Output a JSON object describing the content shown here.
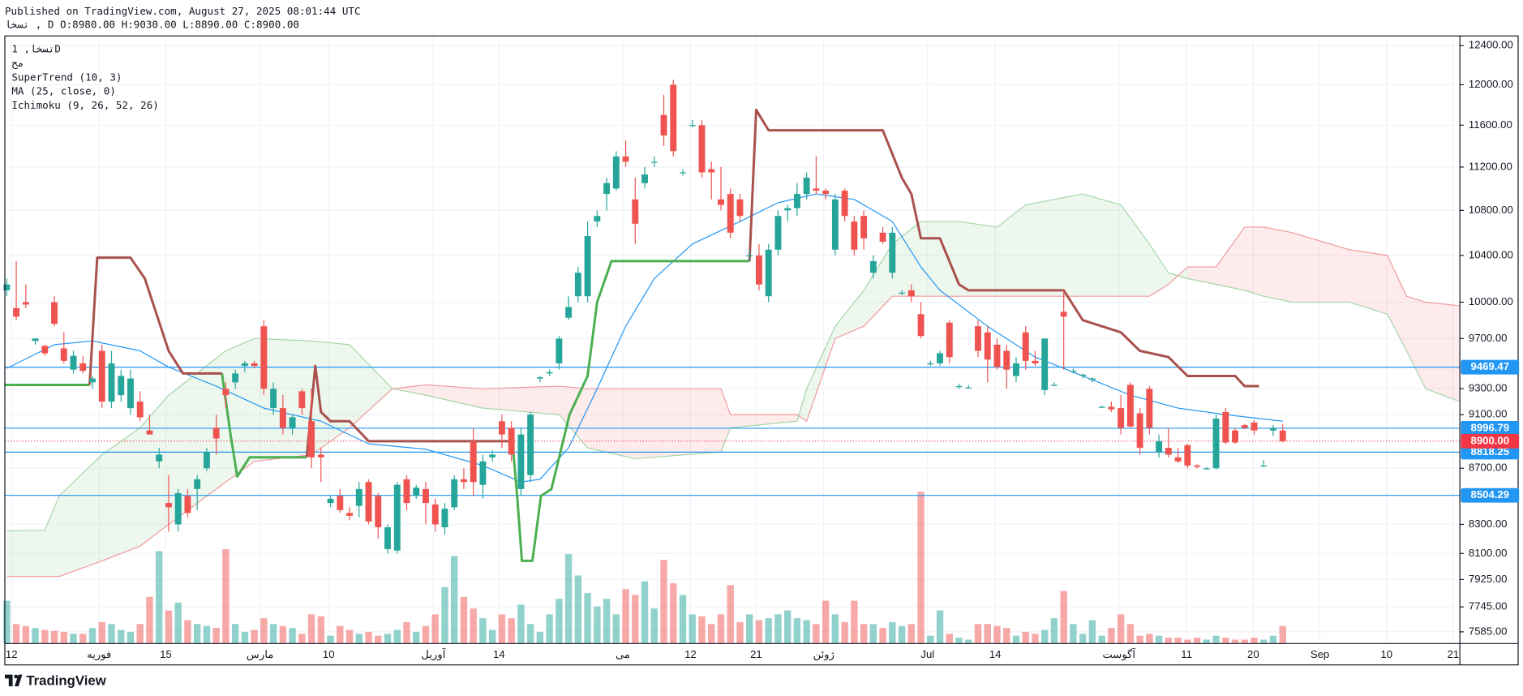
{
  "header": {
    "published": "Published on TradingView.com, August 27, 2025 08:01:44 UTC",
    "symbol_line": "تسخا , D O:8980.00 H:9030.00 L:8890.00 C:8900.00"
  },
  "branding": "TradingView",
  "chart_data": {
    "type": "candlestick",
    "legend": [
      "تسخا, 1D",
      "مح",
      "SuperTrend (10, 3)",
      "MA (25, close, 0)",
      "Ichimoku (9, 26, 52, 26)"
    ],
    "up_color": "#26a69a",
    "down_color": "#ef5350",
    "log_scale": true,
    "grid": true,
    "ylim": [
      7511,
      12501
    ],
    "yticks": [
      {
        "value": 12400,
        "label": "12400.00"
      },
      {
        "value": 12000,
        "label": "12000.00"
      },
      {
        "value": 11600,
        "label": "11600.00"
      },
      {
        "value": 11200,
        "label": "11200.00"
      },
      {
        "value": 10800,
        "label": "10800.00"
      },
      {
        "value": 10400,
        "label": "10400.00"
      },
      {
        "value": 10000,
        "label": "10000.00"
      },
      {
        "value": 9700,
        "label": "9700.00"
      },
      {
        "value": 9300,
        "label": "9300.00"
      },
      {
        "value": 9100,
        "label": "9100.00"
      },
      {
        "value": 8700,
        "label": "8700.00"
      },
      {
        "value": 8300,
        "label": "8300.00"
      },
      {
        "value": 8100,
        "label": "8100.00"
      },
      {
        "value": 7925,
        "label": "7925.00"
      },
      {
        "value": 7745,
        "label": "7745.00"
      },
      {
        "value": 7585,
        "label": "7585.00"
      }
    ],
    "xlim": [
      -0.2,
      152.6
    ],
    "xticks": [
      {
        "value": 0.5,
        "label": "12"
      },
      {
        "value": 9.7,
        "label": "فوریه"
      },
      {
        "value": 16.7,
        "label": "15"
      },
      {
        "value": 26.6,
        "label": "مارس"
      },
      {
        "value": 33.8,
        "label": "10"
      },
      {
        "value": 44.8,
        "label": "آوریل"
      },
      {
        "value": 51.7,
        "label": "14"
      },
      {
        "value": 64.7,
        "label": "می"
      },
      {
        "value": 71.8,
        "label": "12"
      },
      {
        "value": 78.7,
        "label": "21"
      },
      {
        "value": 85.8,
        "label": "ژوئن"
      },
      {
        "value": 96.7,
        "label": "Jul"
      },
      {
        "value": 103.8,
        "label": "14"
      },
      {
        "value": 116.8,
        "label": "آگوست"
      },
      {
        "value": 123.9,
        "label": "11"
      },
      {
        "value": 130.9,
        "label": "20"
      },
      {
        "value": 137.9,
        "label": "Sep"
      },
      {
        "value": 144.9,
        "label": "10"
      },
      {
        "value": 151.9,
        "label": "21"
      }
    ],
    "ohlc": [
      [
        10100,
        10200,
        10050,
        10150
      ],
      [
        9950,
        10350,
        9850,
        9880
      ],
      [
        10000,
        10150,
        9950,
        9980
      ],
      [
        9680,
        9700,
        9650,
        9700
      ],
      [
        9640,
        9650,
        9560,
        9580
      ],
      [
        10000,
        10050,
        9800,
        9820
      ],
      [
        9620,
        9750,
        9500,
        9520
      ],
      [
        9450,
        9600,
        9420,
        9560
      ],
      [
        9500,
        9560,
        9420,
        9440
      ],
      [
        9350,
        9400,
        9300,
        9380
      ],
      [
        9600,
        9650,
        9150,
        9200
      ],
      [
        9200,
        9600,
        9150,
        9500
      ],
      [
        9250,
        9450,
        9200,
        9400
      ],
      [
        9150,
        9450,
        9100,
        9380
      ],
      [
        9200,
        9280,
        9050,
        9080
      ],
      [
        8980,
        9100,
        8950,
        8950
      ],
      [
        8750,
        8850,
        8700,
        8800
      ],
      [
        8450,
        8650,
        8250,
        8420
      ],
      [
        8300,
        8550,
        8250,
        8520
      ],
      [
        8500,
        8550,
        8350,
        8380
      ],
      [
        8550,
        8650,
        8400,
        8620
      ],
      [
        8700,
        8850,
        8680,
        8820
      ],
      [
        9000,
        9100,
        8800,
        8920
      ],
      [
        9300,
        9350,
        9150,
        9250
      ],
      [
        9350,
        9450,
        9300,
        9420
      ],
      [
        9480,
        9520,
        9430,
        9500
      ],
      [
        9500,
        9520,
        9460,
        9480
      ],
      [
        9800,
        9850,
        9250,
        9300
      ],
      [
        9150,
        9350,
        9100,
        9300
      ],
      [
        9150,
        9250,
        8950,
        9000
      ],
      [
        9000,
        9100,
        8950,
        9080
      ],
      [
        9280,
        9300,
        9100,
        9150
      ],
      [
        9050,
        9300,
        8700,
        8780
      ],
      [
        8800,
        8850,
        8600,
        8780
      ],
      [
        8450,
        8500,
        8420,
        8480
      ],
      [
        8500,
        8550,
        8380,
        8400
      ],
      [
        8380,
        8420,
        8330,
        8360
      ],
      [
        8430,
        8600,
        8350,
        8550
      ],
      [
        8600,
        8620,
        8300,
        8320
      ],
      [
        8500,
        8520,
        8200,
        8280
      ],
      [
        8130,
        8300,
        8100,
        8280
      ],
      [
        8120,
        8600,
        8100,
        8580
      ],
      [
        8620,
        8650,
        8400,
        8450
      ],
      [
        8500,
        8580,
        8480,
        8560
      ],
      [
        8550,
        8600,
        8300,
        8450
      ],
      [
        8440,
        8480,
        8250,
        8300
      ],
      [
        8280,
        8450,
        8230,
        8410
      ],
      [
        8420,
        8650,
        8400,
        8620
      ],
      [
        8620,
        8700,
        8550,
        8600
      ],
      [
        8900,
        9000,
        8500,
        8600
      ],
      [
        8580,
        8800,
        8480,
        8750
      ],
      [
        8780,
        8830,
        8750,
        8800
      ],
      [
        9050,
        9100,
        8850,
        8950
      ],
      [
        9000,
        9050,
        8750,
        8800
      ],
      [
        8550,
        9000,
        8500,
        8950
      ],
      [
        8650,
        9120,
        8600,
        9100
      ],
      [
        9380,
        9400,
        9350,
        9390
      ],
      [
        9420,
        9450,
        9400,
        9430
      ],
      [
        9500,
        9720,
        9450,
        9700
      ],
      [
        9870,
        10050,
        9850,
        9960
      ],
      [
        10050,
        10300,
        10000,
        10250
      ],
      [
        10050,
        10700,
        10000,
        10570
      ],
      [
        10700,
        10800,
        10650,
        10750
      ],
      [
        10950,
        11100,
        10800,
        11050
      ],
      [
        11000,
        11350,
        10980,
        11300
      ],
      [
        11300,
        11450,
        11200,
        11250
      ],
      [
        10900,
        11100,
        10500,
        10680
      ],
      [
        11050,
        11200,
        11000,
        11130
      ],
      [
        11250,
        11300,
        11200,
        11250
      ],
      [
        11700,
        11900,
        11400,
        11500
      ],
      [
        12000,
        12050,
        11300,
        11350
      ],
      [
        11150,
        11180,
        11120,
        11150
      ],
      [
        11600,
        11650,
        11580,
        11600
      ],
      [
        11600,
        11650,
        11100,
        11150
      ],
      [
        11180,
        11250,
        10900,
        11150
      ],
      [
        10900,
        11200,
        10800,
        10850
      ],
      [
        10950,
        11000,
        10550,
        10600
      ],
      [
        10900,
        10950,
        10700,
        10750
      ],
      [
        10400,
        10450,
        10350,
        10400
      ],
      [
        10400,
        10500,
        10100,
        10150
      ],
      [
        10050,
        10500,
        10000,
        10450
      ],
      [
        10450,
        10800,
        10400,
        10750
      ],
      [
        10800,
        10850,
        10700,
        10820
      ],
      [
        10820,
        11050,
        10750,
        10950
      ],
      [
        10950,
        11150,
        10900,
        11100
      ],
      [
        11000,
        11300,
        10950,
        10980
      ],
      [
        10980,
        11000,
        10900,
        10950
      ],
      [
        10450,
        10950,
        10400,
        10900
      ],
      [
        10980,
        11000,
        10700,
        10750
      ],
      [
        10700,
        10750,
        10400,
        10450
      ],
      [
        10750,
        10800,
        10450,
        10550
      ],
      [
        10250,
        10400,
        10200,
        10350
      ],
      [
        10600,
        10650,
        10500,
        10520
      ],
      [
        10250,
        10650,
        10200,
        10600
      ],
      [
        10080,
        10100,
        10060,
        10080
      ],
      [
        10100,
        10150,
        10000,
        10050
      ],
      [
        9900,
        10000,
        9700,
        9720
      ],
      [
        9500,
        9520,
        9480,
        9500
      ],
      [
        9500,
        9600,
        9480,
        9580
      ],
      [
        9830,
        9850,
        9500,
        9550
      ],
      [
        9320,
        9340,
        9300,
        9320
      ],
      [
        9310,
        9330,
        9300,
        9310
      ],
      [
        9800,
        9850,
        9550,
        9600
      ],
      [
        9750,
        9800,
        9350,
        9530
      ],
      [
        9650,
        9700,
        9450,
        9470
      ],
      [
        9600,
        9650,
        9300,
        9450
      ],
      [
        9400,
        9550,
        9350,
        9500
      ],
      [
        9750,
        9800,
        9450,
        9520
      ],
      [
        9520,
        9600,
        9480,
        9500
      ],
      [
        9290,
        9700,
        9250,
        9700
      ],
      [
        9330,
        9350,
        9320,
        9330
      ],
      [
        9920,
        10100,
        9450,
        9880
      ],
      [
        9440,
        9460,
        9420,
        9440
      ],
      [
        9400,
        9420,
        9380,
        9410
      ],
      [
        9370,
        9390,
        9350,
        9380
      ],
      [
        9160,
        9170,
        9150,
        9160
      ],
      [
        9160,
        9200,
        9120,
        9140
      ],
      [
        9150,
        9250,
        8950,
        9000
      ],
      [
        9330,
        9350,
        9000,
        9010
      ],
      [
        9110,
        9150,
        8800,
        8850
      ],
      [
        9300,
        9320,
        8950,
        9000
      ],
      [
        8820,
        8950,
        8780,
        8900
      ],
      [
        8850,
        9000,
        8780,
        8800
      ],
      [
        8780,
        8850,
        8740,
        8750
      ],
      [
        8870,
        8880,
        8700,
        8720
      ],
      [
        8720,
        8730,
        8700,
        8710
      ],
      [
        8700,
        8710,
        8690,
        8700
      ],
      [
        8700,
        9100,
        8690,
        9070
      ],
      [
        9120,
        9150,
        8880,
        8890
      ],
      [
        8980,
        9000,
        8880,
        8890
      ],
      [
        9020,
        9030,
        8990,
        9000
      ],
      [
        9040,
        9060,
        8950,
        8980
      ],
      [
        8720,
        8760,
        8710,
        8720
      ],
      [
        8980,
        9020,
        8940,
        9000
      ],
      [
        8980,
        9030,
        8890,
        8900
      ]
    ],
    "volume": [
      44,
      20,
      18,
      16,
      14,
      13,
      12,
      10,
      10,
      16,
      22,
      20,
      14,
      12,
      20,
      48,
      95,
      34,
      42,
      24,
      20,
      18,
      16,
      97,
      20,
      12,
      14,
      26,
      20,
      18,
      16,
      10,
      30,
      28,
      8,
      18,
      14,
      10,
      12,
      8,
      10,
      14,
      22,
      12,
      18,
      30,
      58,
      90,
      48,
      36,
      26,
      14,
      30,
      26,
      40,
      20,
      12,
      30,
      46,
      92,
      70,
      52,
      38,
      46,
      30,
      56,
      50,
      64,
      36,
      86,
      62,
      50,
      30,
      28,
      20,
      30,
      60,
      22,
      30,
      24,
      26,
      30,
      34,
      26,
      24,
      20,
      44,
      30,
      22,
      44,
      20,
      20,
      16,
      22,
      18,
      20,
      156,
      8,
      34,
      10,
      6,
      4,
      20,
      20,
      18,
      16,
      8,
      12,
      10,
      14,
      26,
      54,
      20,
      10,
      24,
      8,
      16,
      30,
      20,
      8,
      10,
      8,
      6,
      6,
      4,
      6,
      4,
      8,
      6,
      4,
      4,
      6,
      4,
      8,
      18
    ],
    "supertrend": {
      "up_color": "#4caf50",
      "down_color": "#a8514d",
      "up": [
        {
          "x": [
            -0.2,
            8.7
          ],
          "values": [
            9330,
            9330
          ]
        },
        {
          "x": [
            22.6,
            23.5,
            24.2,
            25.5,
            31.5
          ],
          "values": [
            9420,
            8950,
            8640,
            8780,
            8780
          ]
        },
        {
          "x": [
            53.1,
            53.6,
            54.1,
            55.2,
            56.1,
            57.2,
            59.1,
            61,
            62,
            63.5,
            78
          ],
          "values": [
            8900,
            8500,
            8050,
            8050,
            8500,
            8550,
            9100,
            9400,
            10000,
            10350,
            10350
          ]
        }
      ],
      "down": [
        {
          "x": [
            8.7,
            9.5,
            13,
            14.5,
            17,
            18.5,
            22.6
          ],
          "values": [
            9330,
            10380,
            10380,
            10200,
            9600,
            9420,
            9420
          ]
        },
        {
          "x": [
            31.5,
            32.4,
            33,
            34,
            36,
            38,
            53.1
          ],
          "values": [
            8780,
            9480,
            9120,
            9050,
            9050,
            8900,
            8900
          ]
        },
        {
          "x": [
            78,
            78.7,
            80,
            92,
            94,
            95,
            96,
            98,
            100,
            101,
            111,
            113,
            117,
            119,
            122,
            124,
            129,
            130,
            131.5
          ],
          "values": [
            10350,
            11750,
            11550,
            11550,
            11100,
            10950,
            10550,
            10550,
            10150,
            10100,
            10100,
            9850,
            9750,
            9600,
            9550,
            9400,
            9400,
            9320,
            9320
          ]
        }
      ]
    },
    "ma": {
      "color": "#2196f3",
      "x": [
        0,
        5,
        9,
        14,
        17,
        22,
        27,
        33,
        38,
        44,
        50,
        54,
        56,
        59,
        62,
        65,
        68,
        72,
        77,
        81,
        85,
        89,
        93,
        96,
        98,
        103,
        108,
        113,
        118,
        123,
        128,
        134
      ],
      "values": [
        9460,
        9650,
        9680,
        9600,
        9470,
        9320,
        9150,
        9050,
        8880,
        8840,
        8720,
        8600,
        8620,
        8850,
        9300,
        9800,
        10200,
        10500,
        10700,
        10870,
        10950,
        10900,
        10700,
        10300,
        10100,
        9800,
        9550,
        9400,
        9250,
        9150,
        9100,
        9050
      ]
    },
    "ichimoku": {
      "up_color": "rgba(76,175,80,0.1)",
      "down_color": "rgba(242,54,69,0.1)",
      "span_a_color": "#a5d6a7",
      "span_b_color": "#ef9a9a",
      "x": [
        0,
        4,
        5.5,
        10,
        14,
        17,
        23,
        26,
        32,
        36,
        40.5,
        44,
        50,
        58,
        61,
        66,
        75,
        76,
        83,
        84,
        87,
        90,
        93,
        96,
        100,
        104,
        107,
        113,
        117,
        120,
        122,
        124,
        127,
        130,
        132,
        135,
        141,
        145,
        147,
        149,
        152.6
      ],
      "span_a": [
        8255,
        8260,
        8500,
        8800,
        9000,
        9250,
        9600,
        9700,
        9680,
        9650,
        9300,
        9250,
        9150,
        9100,
        8850,
        8770,
        8820,
        9000,
        9050,
        9300,
        9800,
        10100,
        10500,
        10700,
        10700,
        10650,
        10850,
        10950,
        10850,
        10500,
        10250,
        10200,
        10150,
        10100,
        10050,
        10000,
        10000,
        9900,
        9600,
        9300,
        9200
      ],
      "span_b": [
        7945,
        7945,
        7945,
        8050,
        8150,
        8300,
        8600,
        8750,
        8800,
        9000,
        9300,
        9330,
        9300,
        9320,
        9300,
        9300,
        9300,
        9100,
        9100,
        9050,
        9700,
        9800,
        10050,
        10050,
        10050,
        10050,
        10050,
        10050,
        10050,
        10050,
        10150,
        10300,
        10300,
        10650,
        10650,
        10600,
        10450,
        10400,
        10050,
        10000,
        9970
      ]
    },
    "line_color": "#2196f3",
    "price_lines": [
      {
        "value": 9469.47,
        "label": "9469.47"
      },
      {
        "value": 8996.79,
        "label": "8996.79"
      },
      {
        "value": 8818.25,
        "label": "8818.25"
      },
      {
        "value": 8504.29,
        "label": "8504.29"
      }
    ],
    "last_price": {
      "value": 8900,
      "label": "8900.00",
      "color": "#f23645"
    }
  }
}
